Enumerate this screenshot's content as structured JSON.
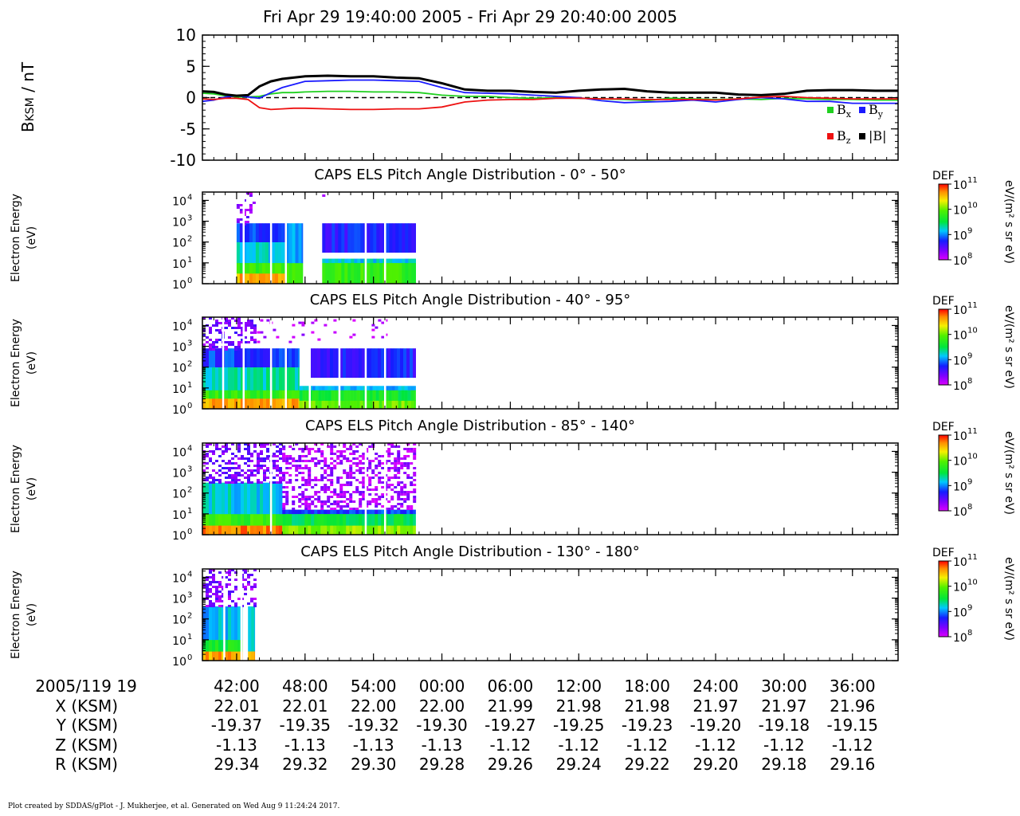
{
  "title": "Fri Apr 29 19:40:00 2005 - Fri Apr 29 20:40:00 2005",
  "footer": "Plot created by SDDAS/gPlot - J. Mukherjee, et al.  Generated on Wed Aug 9 11:24:24 2017.",
  "colors": {
    "bx": "#20d020",
    "by": "#1a1aff",
    "bz": "#ee1111",
    "btot": "#000000"
  },
  "chart_data": [
    {
      "type": "line",
      "ylabel_main": "B",
      "ylabel_sub": "KSM",
      "ylabel_unit": " / nT",
      "ylim": [
        -10,
        10
      ],
      "yticks": [
        -10,
        -5,
        0,
        5,
        10
      ],
      "xlim": [
        39,
        100
      ],
      "zero_line": "dashed",
      "legend": [
        {
          "key": "bx",
          "base": "B",
          "sub": "x"
        },
        {
          "key": "by",
          "base": "B",
          "sub": "y"
        },
        {
          "key": "bz",
          "base": "B",
          "sub": "z"
        },
        {
          "key": "btot",
          "base": "|B|",
          "sub": ""
        }
      ],
      "legend_position": "bottom-right",
      "x": [
        39,
        40,
        41,
        42,
        43,
        44,
        45,
        46,
        47,
        48,
        50,
        52,
        54,
        56,
        58,
        60,
        62,
        64,
        66,
        68,
        70,
        72,
        74,
        76,
        78,
        80,
        82,
        84,
        86,
        88,
        90,
        92,
        94,
        96,
        98,
        100
      ],
      "series": [
        {
          "key": "bx",
          "values": [
            0.7,
            0.6,
            0.3,
            0.1,
            0.1,
            0.2,
            0.6,
            0.8,
            0.8,
            0.9,
            1.0,
            1.0,
            0.9,
            0.9,
            0.8,
            0.4,
            0.2,
            0.2,
            0.0,
            -0.1,
            0.0,
            -0.1,
            -0.2,
            -0.3,
            -0.5,
            -0.1,
            -0.2,
            -0.3,
            -0.2,
            -0.3,
            -0.1,
            -0.2,
            -0.3,
            -0.3,
            -0.4,
            -0.4
          ]
        },
        {
          "key": "by",
          "values": [
            -0.6,
            -0.4,
            0.1,
            0.3,
            0.1,
            -0.1,
            0.8,
            1.6,
            2.1,
            2.6,
            2.7,
            2.8,
            2.8,
            2.7,
            2.6,
            1.6,
            0.8,
            0.7,
            0.6,
            0.4,
            0.2,
            0.0,
            -0.5,
            -0.8,
            -0.7,
            -0.6,
            -0.4,
            -0.7,
            -0.3,
            0.0,
            -0.2,
            -0.6,
            -0.6,
            -0.9,
            -0.9,
            -0.9
          ]
        },
        {
          "key": "bz",
          "values": [
            -0.2,
            -0.3,
            -0.1,
            -0.1,
            -0.3,
            -1.6,
            -1.9,
            -1.8,
            -1.7,
            -1.7,
            -1.8,
            -1.9,
            -1.9,
            -1.8,
            -1.8,
            -1.5,
            -0.7,
            -0.4,
            -0.3,
            -0.3,
            -0.1,
            -0.1,
            -0.2,
            -0.2,
            -0.3,
            -0.3,
            -0.3,
            -0.4,
            -0.2,
            0.1,
            0.2,
            0.0,
            -0.1,
            -0.2,
            -0.2,
            -0.2
          ]
        },
        {
          "key": "btot",
          "values": [
            1.0,
            0.9,
            0.5,
            0.3,
            0.4,
            1.8,
            2.6,
            3.0,
            3.2,
            3.4,
            3.5,
            3.4,
            3.4,
            3.2,
            3.1,
            2.3,
            1.3,
            1.1,
            1.1,
            0.9,
            0.8,
            1.1,
            1.3,
            1.4,
            1.0,
            0.8,
            0.8,
            0.8,
            0.5,
            0.4,
            0.6,
            1.1,
            1.2,
            1.2,
            1.1,
            1.1
          ]
        }
      ]
    },
    {
      "type": "heatmap",
      "title": "CAPS ELS Pitch Angle Distribution - 0° - 50°",
      "ylabel": "Electron Energy",
      "ylabel_unit": "(eV)",
      "ylog": true,
      "yticks_exp": [
        0,
        1,
        2,
        3,
        4
      ],
      "xlim": [
        39,
        100
      ],
      "bands": [
        {
          "x0": 42.0,
          "x1": 46.3,
          "y0": 0.0,
          "y1": 0.5,
          "level": 10.6
        },
        {
          "x0": 42.0,
          "x1": 46.3,
          "y0": 0.5,
          "y1": 1.0,
          "level": 9.8
        },
        {
          "x0": 42.0,
          "x1": 46.3,
          "y0": 1.0,
          "y1": 2.0,
          "level": 9.2
        },
        {
          "x0": 42.0,
          "x1": 46.3,
          "y0": 2.0,
          "y1": 2.9,
          "level": 8.8
        },
        {
          "x0": 46.3,
          "x1": 47.8,
          "y0": 0.0,
          "y1": 1.0,
          "level": 9.8
        },
        {
          "x0": 46.3,
          "x1": 47.8,
          "y0": 1.0,
          "y1": 2.9,
          "level": 9.0
        },
        {
          "x0": 49.5,
          "x1": 57.7,
          "y0": 0.0,
          "y1": 1.0,
          "level": 9.8
        },
        {
          "x0": 49.5,
          "x1": 57.7,
          "y0": 1.0,
          "y1": 1.2,
          "level": 9.2
        },
        {
          "x0": 49.5,
          "x1": 57.7,
          "y0": 1.5,
          "y1": 2.9,
          "level": 8.7
        }
      ],
      "sparse": [
        {
          "x0": 42.0,
          "x1": 43.5,
          "y0": 2.9,
          "y1": 4.4,
          "level": 8.3,
          "density": 0.35
        },
        {
          "x0": 49.5,
          "x1": 49.7,
          "y0": 4.0,
          "y1": 4.4,
          "level": 8.2,
          "density": 0.5
        }
      ],
      "gaps": [
        42.6,
        45.0,
        46.3,
        53.3,
        55.0
      ],
      "colorbar_label": "DEF",
      "colorbar_unit": "eV/(m² s sr eV)"
    },
    {
      "type": "heatmap",
      "title": "CAPS ELS Pitch Angle Distribution - 40° - 95°",
      "ylabel": "Electron Energy",
      "ylabel_unit": "(eV)",
      "ylog": true,
      "yticks_exp": [
        0,
        1,
        2,
        3,
        4
      ],
      "xlim": [
        39,
        100
      ],
      "bands": [
        {
          "x0": 39.0,
          "x1": 47.5,
          "y0": 0.0,
          "y1": 0.5,
          "level": 10.6
        },
        {
          "x0": 39.0,
          "x1": 47.5,
          "y0": 0.5,
          "y1": 0.9,
          "level": 9.8
        },
        {
          "x0": 39.0,
          "x1": 47.5,
          "y0": 0.9,
          "y1": 2.0,
          "level": 9.3
        },
        {
          "x0": 39.0,
          "x1": 47.5,
          "y0": 2.0,
          "y1": 2.9,
          "level": 8.8
        },
        {
          "x0": 47.5,
          "x1": 57.7,
          "y0": 0.0,
          "y1": 0.4,
          "level": 10.0
        },
        {
          "x0": 47.5,
          "x1": 57.7,
          "y0": 0.4,
          "y1": 0.9,
          "level": 9.6
        },
        {
          "x0": 47.5,
          "x1": 57.7,
          "y0": 0.9,
          "y1": 1.1,
          "level": 9.1
        },
        {
          "x0": 48.5,
          "x1": 57.7,
          "y0": 1.5,
          "y1": 2.9,
          "level": 8.7
        }
      ],
      "sparse": [
        {
          "x0": 39.0,
          "x1": 43.5,
          "y0": 2.9,
          "y1": 4.4,
          "level": 8.4,
          "density": 0.45
        },
        {
          "x0": 43.5,
          "x1": 55.0,
          "y0": 3.2,
          "y1": 4.3,
          "level": 8.1,
          "density": 0.06
        }
      ],
      "gaps": [
        40.8,
        42.6,
        45.0,
        46.3,
        48.4,
        51.0,
        53.3,
        55.0
      ],
      "colorbar_label": "DEF",
      "colorbar_unit": "eV/(m² s sr eV)"
    },
    {
      "type": "heatmap",
      "title": "CAPS ELS Pitch Angle Distribution - 85° - 140°",
      "ylabel": "Electron Energy",
      "ylabel_unit": "(eV)",
      "ylog": true,
      "yticks_exp": [
        0,
        1,
        2,
        3,
        4
      ],
      "xlim": [
        39,
        100
      ],
      "bands": [
        {
          "x0": 39.0,
          "x1": 46.0,
          "y0": 0.0,
          "y1": 0.45,
          "level": 10.7
        },
        {
          "x0": 39.0,
          "x1": 46.0,
          "y0": 0.45,
          "y1": 1.0,
          "level": 9.8
        },
        {
          "x0": 39.0,
          "x1": 46.0,
          "y0": 1.0,
          "y1": 2.5,
          "level": 9.2
        },
        {
          "x0": 46.0,
          "x1": 57.7,
          "y0": 0.0,
          "y1": 0.45,
          "level": 10.1
        },
        {
          "x0": 46.0,
          "x1": 57.7,
          "y0": 0.45,
          "y1": 1.0,
          "level": 9.5
        },
        {
          "x0": 46.0,
          "x1": 57.7,
          "y0": 1.0,
          "y1": 1.2,
          "level": 8.8
        }
      ],
      "sparse": [
        {
          "x0": 39.0,
          "x1": 46.0,
          "y0": 2.5,
          "y1": 4.4,
          "level": 8.4,
          "density": 0.5
        },
        {
          "x0": 46.0,
          "x1": 57.7,
          "y0": 1.2,
          "y1": 4.4,
          "level": 8.2,
          "density": 0.45
        }
      ],
      "gaps": [
        45.0,
        53.3,
        55.0
      ],
      "colorbar_label": "DEF",
      "colorbar_unit": "eV/(m² s sr eV)"
    },
    {
      "type": "heatmap",
      "title": "CAPS ELS Pitch Angle Distribution - 130° - 180°",
      "ylabel": "Electron Energy",
      "ylabel_unit": "(eV)",
      "ylog": true,
      "yticks_exp": [
        0,
        1,
        2,
        3,
        4
      ],
      "xlim": [
        39,
        100
      ],
      "bands": [
        {
          "x0": 39.0,
          "x1": 42.5,
          "y0": 0.0,
          "y1": 0.45,
          "level": 10.6
        },
        {
          "x0": 39.0,
          "x1": 42.5,
          "y0": 0.45,
          "y1": 1.0,
          "level": 9.6
        },
        {
          "x0": 39.0,
          "x1": 42.5,
          "y0": 1.0,
          "y1": 2.6,
          "level": 9.1
        },
        {
          "x0": 43.0,
          "x1": 43.6,
          "y0": 0.0,
          "y1": 0.45,
          "level": 10.6
        },
        {
          "x0": 43.0,
          "x1": 43.6,
          "y0": 0.45,
          "y1": 2.6,
          "level": 9.2
        }
      ],
      "sparse": [
        {
          "x0": 39.0,
          "x1": 43.6,
          "y0": 2.6,
          "y1": 4.4,
          "level": 8.3,
          "density": 0.4
        }
      ],
      "gaps": [
        40.9,
        42.4
      ],
      "colorbar_label": "DEF",
      "colorbar_unit": "eV/(m² s sr eV)"
    }
  ],
  "colorbar": {
    "min_exp": 8,
    "max_exp": 11,
    "tick_exps": [
      8,
      9,
      10,
      11
    ]
  },
  "xaxis": {
    "date_label": "2005/119 19",
    "row_labels": [
      "X (KSM)",
      "Y (KSM)",
      "Z (KSM)",
      "R (KSM)"
    ],
    "ticks": [
      {
        "t": 42,
        "label": "42:00",
        "vals": [
          "22.01",
          "-19.37",
          "-1.13",
          "29.34"
        ]
      },
      {
        "t": 48,
        "label": "48:00",
        "vals": [
          "22.01",
          "-19.35",
          "-1.13",
          "29.32"
        ]
      },
      {
        "t": 54,
        "label": "54:00",
        "vals": [
          "22.00",
          "-19.32",
          "-1.13",
          "29.30"
        ]
      },
      {
        "t": 60,
        "label": "00:00",
        "vals": [
          "22.00",
          "-19.30",
          "-1.13",
          "29.28"
        ]
      },
      {
        "t": 66,
        "label": "06:00",
        "vals": [
          "21.99",
          "-19.27",
          "-1.12",
          "29.26"
        ]
      },
      {
        "t": 72,
        "label": "12:00",
        "vals": [
          "21.98",
          "-19.25",
          "-1.12",
          "29.24"
        ]
      },
      {
        "t": 78,
        "label": "18:00",
        "vals": [
          "21.98",
          "-19.23",
          "-1.12",
          "29.22"
        ]
      },
      {
        "t": 84,
        "label": "24:00",
        "vals": [
          "21.97",
          "-19.20",
          "-1.12",
          "29.20"
        ]
      },
      {
        "t": 90,
        "label": "30:00",
        "vals": [
          "21.97",
          "-19.18",
          "-1.12",
          "29.18"
        ]
      },
      {
        "t": 96,
        "label": "36:00",
        "vals": [
          "21.96",
          "-19.15",
          "-1.12",
          "29.16"
        ]
      }
    ]
  }
}
